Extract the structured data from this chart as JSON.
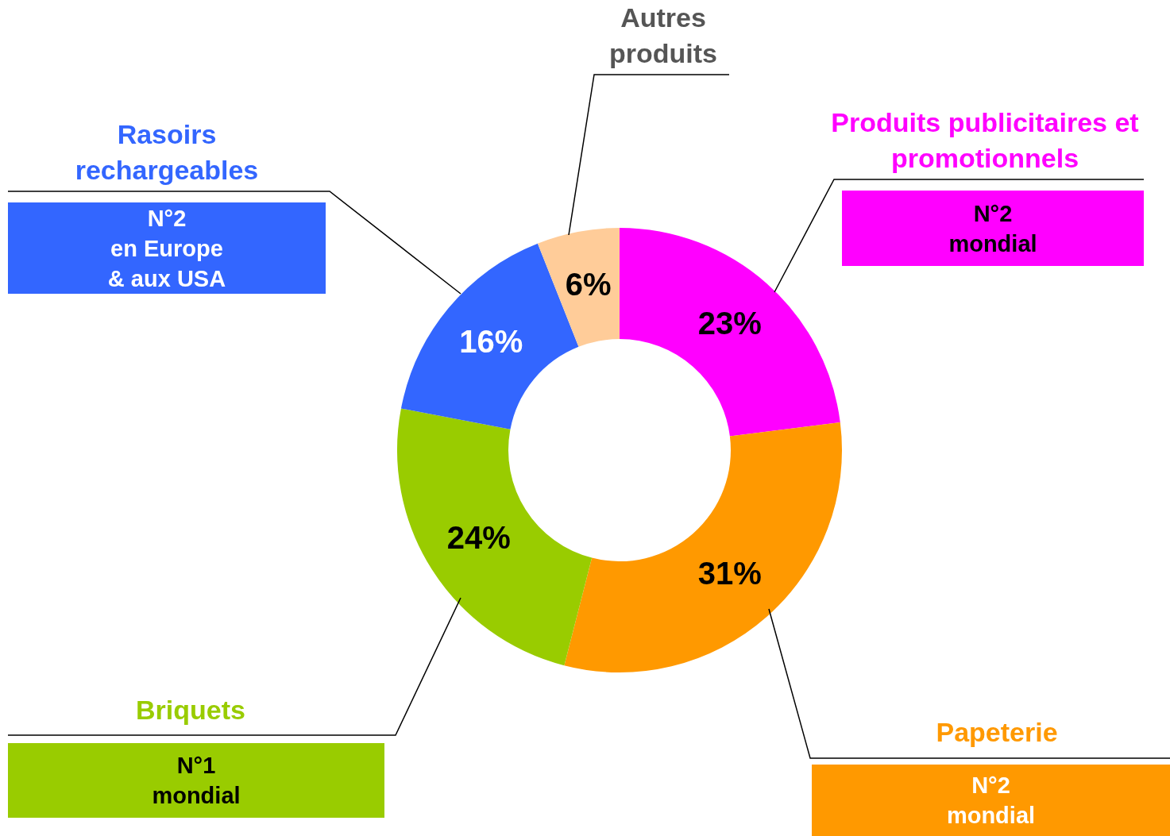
{
  "chart_data": {
    "type": "donut",
    "categories": [
      "Produits publicitaires et promotionnels",
      "Papeterie",
      "Briquets",
      "Rasoirs rechargeables",
      "Autres produits"
    ],
    "values": [
      23,
      31,
      24,
      16,
      6
    ],
    "colors": [
      "#ff00ff",
      "#ff9900",
      "#99cc00",
      "#3366ff",
      "#ffcc99"
    ],
    "value_labels": [
      "23%",
      "31%",
      "24%",
      "16%",
      "6%"
    ],
    "legend": false,
    "annotations": [
      {
        "text": "N°2\nmondial",
        "x": "Produits publicitaires et promotionnels"
      },
      {
        "text": "N°2\nmondial",
        "x": "Papeterie"
      },
      {
        "text": "N°1\nmondial",
        "x": "Briquets"
      },
      {
        "text": "N°2\nen Europe\n& aux USA",
        "x": "Rasoirs rechargeables"
      }
    ]
  }
}
